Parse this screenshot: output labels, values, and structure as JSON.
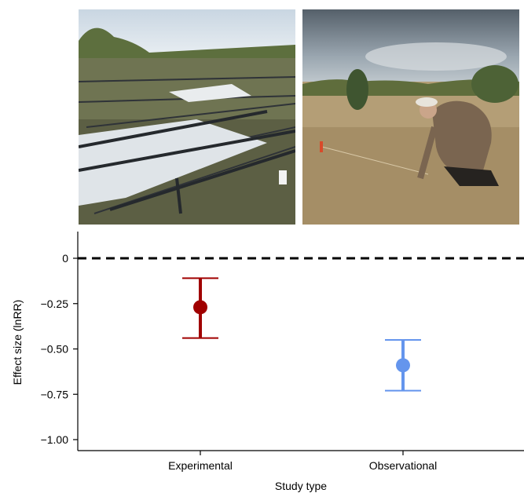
{
  "photos": {
    "left": "experimental-plots-photo",
    "right": "field-observation-photo"
  },
  "chart_data": {
    "type": "scatter",
    "xlabel": "Study type",
    "ylabel": "Effect size (lnRR)",
    "categories": [
      "Experimental",
      "Observational"
    ],
    "points": [
      {
        "category": "Experimental",
        "value": -0.27,
        "ci_low": -0.44,
        "ci_high": -0.11,
        "color": "#a00000"
      },
      {
        "category": "Observational",
        "value": -0.59,
        "ci_low": -0.73,
        "ci_high": -0.45,
        "color": "#6495ed"
      }
    ],
    "yticks": [
      {
        "value": 0,
        "label": "0"
      },
      {
        "value": -0.25,
        "label": "−0.25"
      },
      {
        "value": -0.5,
        "label": "−0.50"
      },
      {
        "value": -0.75,
        "label": "−0.75"
      },
      {
        "value": -1.0,
        "label": "−1.00"
      }
    ],
    "ylim": [
      -1.05,
      0.15
    ],
    "reference_line": {
      "value": 0,
      "style": "dashed"
    },
    "grid": false,
    "legend": "none"
  }
}
